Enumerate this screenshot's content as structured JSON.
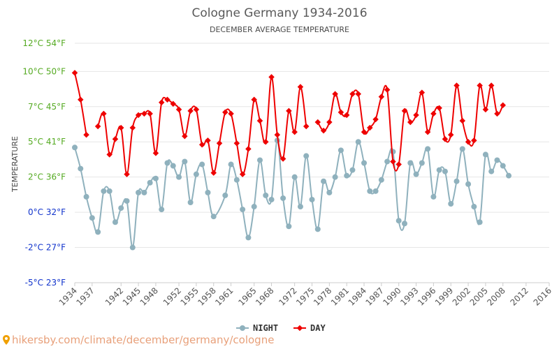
{
  "colors": {
    "night": "#8fb1bd",
    "day": "#ee0000",
    "ytick_green": "#55aa22",
    "ytick_blue": "#1133cc",
    "grid": "#e6e6e6",
    "footer": "#e8a07a"
  },
  "footer": {
    "text": "hikersby.com/climate/december/germany/cologne",
    "icon": "map-pin-icon"
  },
  "chart_data": {
    "type": "line",
    "title": "Cologne Germany 1934-2016",
    "subtitle": "DECEMBER AVERAGE TEMPERATURE",
    "ylabel": "TEMPERATURE",
    "xlabel": "",
    "ylim": [
      -5,
      12
    ],
    "xlim": [
      1934,
      2016
    ],
    "grid": true,
    "legend_position": "bottom-center",
    "y_ticks": [
      {
        "value": 12,
        "label": "12°C 54°F",
        "color": "green"
      },
      {
        "value": 10,
        "label": "10°C 50°F",
        "color": "green"
      },
      {
        "value": 7.5,
        "label": "7°C 45°F",
        "color": "green"
      },
      {
        "value": 5,
        "label": "5°C 41°F",
        "color": "green"
      },
      {
        "value": 2.5,
        "label": "2°C 36°F",
        "color": "green"
      },
      {
        "value": 0,
        "label": "0°C 32°F",
        "color": "blue"
      },
      {
        "value": -2.5,
        "label": "-2°C 27°F",
        "color": "blue"
      },
      {
        "value": -5,
        "label": "-5°C 23°F",
        "color": "blue"
      }
    ],
    "x_ticks": [
      "1934",
      "1937",
      "1942",
      "1945",
      "1948",
      "1952",
      "1955",
      "1958",
      "1961",
      "1965",
      "1968",
      "1972",
      "1975",
      "1978",
      "1981",
      "1984",
      "1987",
      "1990",
      "1993",
      "1996",
      "1999",
      "2002",
      "2005",
      "2008",
      "2012",
      "2016"
    ],
    "series": [
      {
        "name": "NIGHT",
        "color": "night",
        "points": [
          [
            1934,
            4.6
          ],
          [
            1935,
            3.1
          ],
          [
            1936,
            1.1
          ],
          [
            1937,
            -0.4
          ],
          [
            1938,
            -1.4
          ],
          [
            1939,
            1.5
          ],
          [
            1940,
            1.5
          ],
          [
            1941,
            -0.7
          ],
          [
            1942,
            0.3
          ],
          [
            1943,
            0.8
          ],
          [
            1944,
            -2.5
          ],
          [
            1945,
            1.4
          ],
          [
            1946,
            1.4
          ],
          [
            1947,
            2.1
          ],
          [
            1948,
            2.4
          ],
          [
            1949,
            0.2
          ],
          [
            1950,
            3.5
          ],
          [
            1951,
            3.3
          ],
          [
            1952,
            2.5
          ],
          [
            1953,
            3.6
          ],
          [
            1954,
            0.7
          ],
          [
            1955,
            2.7
          ],
          [
            1956,
            3.4
          ],
          [
            1957,
            1.4
          ],
          [
            1958,
            -0.3
          ],
          [
            1960,
            1.2
          ],
          [
            1961,
            3.4
          ],
          [
            1962,
            2.3
          ],
          [
            1963,
            0.2
          ],
          [
            1964,
            -1.8
          ],
          [
            1965,
            0.4
          ],
          [
            1966,
            3.7
          ],
          [
            1967,
            1.2
          ],
          [
            1968,
            0.9
          ],
          [
            1969,
            5.1
          ],
          [
            1970,
            1.0
          ],
          [
            1971,
            -1.0
          ],
          [
            1972,
            2.5
          ],
          [
            1973,
            0.4
          ],
          [
            1974,
            4.0
          ],
          [
            1975,
            0.9
          ],
          [
            1976,
            -1.2
          ],
          [
            1977,
            2.2
          ],
          [
            1978,
            1.4
          ],
          [
            1979,
            2.5
          ],
          [
            1980,
            4.4
          ],
          [
            1981,
            2.6
          ],
          [
            1982,
            3.0
          ],
          [
            1983,
            5.0
          ],
          [
            1984,
            3.5
          ],
          [
            1985,
            1.5
          ],
          [
            1986,
            1.5
          ],
          [
            1987,
            2.3
          ],
          [
            1988,
            3.6
          ],
          [
            1989,
            4.3
          ],
          [
            1990,
            -0.6
          ],
          [
            1991,
            -0.8
          ],
          [
            1992,
            3.5
          ],
          [
            1993,
            2.7
          ],
          [
            1994,
            3.5
          ],
          [
            1995,
            4.5
          ],
          [
            1996,
            1.1
          ],
          [
            1997,
            3.0
          ],
          [
            1998,
            2.9
          ],
          [
            1999,
            0.6
          ],
          [
            2000,
            2.2
          ],
          [
            2001,
            4.5
          ],
          [
            2002,
            2.0
          ],
          [
            2003,
            0.4
          ],
          [
            2004,
            -0.7
          ],
          [
            2005,
            4.1
          ],
          [
            2006,
            2.9
          ],
          [
            2007,
            3.7
          ],
          [
            2008,
            3.3
          ],
          [
            2009,
            2.6
          ]
        ]
      },
      {
        "name": "DAY",
        "color": "day",
        "segments": [
          [
            [
              1934,
              9.9
            ],
            [
              1935,
              8.0
            ],
            [
              1936,
              5.5
            ]
          ],
          [
            [
              1938,
              6.1
            ],
            [
              1939,
              7.0
            ],
            [
              1940,
              4.1
            ],
            [
              1941,
              5.2
            ],
            [
              1942,
              6.0
            ],
            [
              1943,
              2.7
            ],
            [
              1944,
              6.0
            ],
            [
              1945,
              6.9
            ],
            [
              1946,
              7.0
            ],
            [
              1947,
              7.0
            ],
            [
              1948,
              4.2
            ],
            [
              1949,
              7.8
            ],
            [
              1950,
              8.0
            ],
            [
              1951,
              7.7
            ],
            [
              1952,
              7.3
            ],
            [
              1953,
              5.4
            ],
            [
              1954,
              7.2
            ],
            [
              1955,
              7.3
            ],
            [
              1956,
              4.8
            ],
            [
              1957,
              5.1
            ],
            [
              1958,
              2.8
            ],
            [
              1959,
              4.9
            ],
            [
              1960,
              7.1
            ],
            [
              1961,
              7.0
            ],
            [
              1962,
              4.9
            ],
            [
              1963,
              2.7
            ],
            [
              1964,
              4.5
            ],
            [
              1965,
              8.0
            ],
            [
              1966,
              6.5
            ],
            [
              1967,
              5.0
            ],
            [
              1968,
              9.6
            ],
            [
              1969,
              5.5
            ],
            [
              1970,
              3.8
            ],
            [
              1971,
              7.2
            ],
            [
              1972,
              5.7
            ],
            [
              1973,
              8.9
            ],
            [
              1974,
              6.1
            ]
          ],
          [
            [
              1976,
              6.4
            ],
            [
              1977,
              5.8
            ],
            [
              1978,
              6.4
            ],
            [
              1979,
              8.4
            ],
            [
              1980,
              7.1
            ],
            [
              1981,
              6.9
            ],
            [
              1982,
              8.4
            ],
            [
              1983,
              8.4
            ],
            [
              1984,
              5.7
            ],
            [
              1985,
              6.0
            ],
            [
              1986,
              6.6
            ],
            [
              1987,
              8.2
            ],
            [
              1988,
              8.7
            ],
            [
              1989,
              3.6
            ],
            [
              1990,
              3.4
            ],
            [
              1991,
              7.2
            ],
            [
              1992,
              6.4
            ],
            [
              1993,
              6.9
            ],
            [
              1994,
              8.5
            ],
            [
              1995,
              5.7
            ],
            [
              1996,
              7.0
            ],
            [
              1997,
              7.4
            ],
            [
              1998,
              5.2
            ],
            [
              1999,
              5.5
            ],
            [
              2000,
              9.0
            ],
            [
              2001,
              6.5
            ],
            [
              2002,
              5.0
            ],
            [
              2003,
              5.1
            ],
            [
              2004,
              9.0
            ],
            [
              2005,
              7.3
            ],
            [
              2006,
              9.0
            ],
            [
              2007,
              7.0
            ],
            [
              2008,
              7.6
            ]
          ]
        ]
      }
    ]
  }
}
